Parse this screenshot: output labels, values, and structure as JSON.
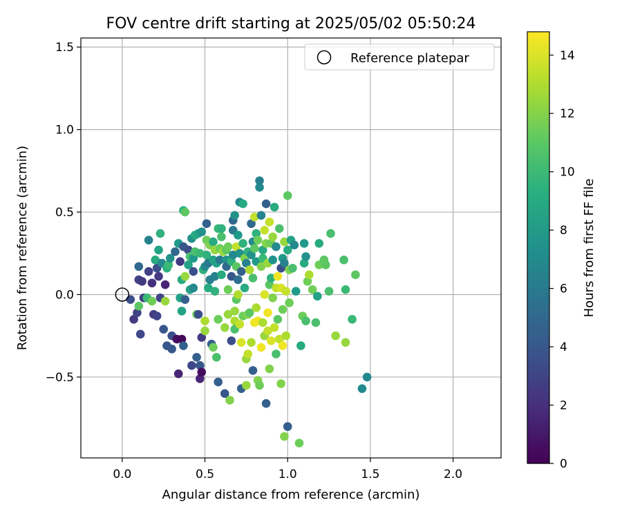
{
  "chart_data": {
    "type": "scatter",
    "title": "FOV centre drift starting at 2025/05/02 05:50:24",
    "xlabel": "Angular distance from reference (arcmin)",
    "ylabel": "Rotation from reference (arcmin)",
    "xlim": [
      -0.25,
      2.29
    ],
    "ylim": [
      -0.99,
      1.555
    ],
    "xticks": [
      0.0,
      0.5,
      1.0,
      1.5,
      2.0
    ],
    "xtick_labels": [
      "0.0",
      "0.5",
      "1.0",
      "1.5",
      "2.0"
    ],
    "yticks": [
      -0.5,
      0.0,
      0.5,
      1.0,
      1.5
    ],
    "ytick_labels": [
      "−0.5",
      "0.0",
      "0.5",
      "1.0",
      "1.5"
    ],
    "grid": true,
    "legend": {
      "placement": "top-right",
      "entries": [
        "Reference platepar"
      ]
    },
    "reference_point": {
      "x": 0.0,
      "y": 0.0,
      "label": "Reference platepar"
    },
    "colorbar": {
      "label": "Hours from first FF file",
      "min": 0,
      "max": 14.8,
      "colormap": "viridis",
      "ticks": [
        0,
        2,
        4,
        6,
        8,
        10,
        12,
        14
      ],
      "tick_labels": [
        "0",
        "2",
        "4",
        "6",
        "8",
        "10",
        "12",
        "14"
      ]
    },
    "points": [
      {
        "x": 0.07,
        "y": -0.15,
        "hours": 2.5
      },
      {
        "x": 0.09,
        "y": -0.11,
        "hours": 3.0
      },
      {
        "x": 0.11,
        "y": -0.24,
        "hours": 3.2
      },
      {
        "x": 0.05,
        "y": -0.03,
        "hours": 3.5
      },
      {
        "x": 0.1,
        "y": 0.09,
        "hours": 3.0
      },
      {
        "x": 0.12,
        "y": 0.08,
        "hours": 2.5
      },
      {
        "x": 0.1,
        "y": 0.17,
        "hours": 5.0
      },
      {
        "x": 0.13,
        "y": -0.02,
        "hours": 2.8
      },
      {
        "x": 0.1,
        "y": -0.07,
        "hours": 11.0
      },
      {
        "x": 0.15,
        "y": -0.02,
        "hours": 10.0
      },
      {
        "x": 0.16,
        "y": 0.14,
        "hours": 2.8
      },
      {
        "x": 0.16,
        "y": 0.33,
        "hours": 6.5
      },
      {
        "x": 0.18,
        "y": 0.07,
        "hours": 2.0
      },
      {
        "x": 0.19,
        "y": -0.12,
        "hours": 2.6
      },
      {
        "x": 0.18,
        "y": -0.04,
        "hours": 11.5
      },
      {
        "x": 0.2,
        "y": 0.21,
        "hours": 9.0
      },
      {
        "x": 0.21,
        "y": 0.16,
        "hours": 3.5
      },
      {
        "x": 0.22,
        "y": 0.11,
        "hours": 2.5
      },
      {
        "x": 0.21,
        "y": -0.13,
        "hours": 3.0
      },
      {
        "x": 0.23,
        "y": 0.37,
        "hours": 9.5
      },
      {
        "x": 0.22,
        "y": 0.27,
        "hours": 8.5
      },
      {
        "x": 0.23,
        "y": -0.02,
        "hours": 3.0
      },
      {
        "x": 0.25,
        "y": -0.21,
        "hours": 4.0
      },
      {
        "x": 0.26,
        "y": 0.06,
        "hours": 1.5
      },
      {
        "x": 0.24,
        "y": 0.19,
        "hours": 7.0
      },
      {
        "x": 0.26,
        "y": -0.04,
        "hours": 12.5
      },
      {
        "x": 0.27,
        "y": 0.16,
        "hours": 9.5
      },
      {
        "x": 0.28,
        "y": 0.18,
        "hours": 10.0
      },
      {
        "x": 0.27,
        "y": -0.31,
        "hours": 4.0
      },
      {
        "x": 0.29,
        "y": 0.22,
        "hours": 7.5
      },
      {
        "x": 0.3,
        "y": -0.25,
        "hours": 3.5
      },
      {
        "x": 0.3,
        "y": -0.33,
        "hours": 4.0
      },
      {
        "x": 0.32,
        "y": 0.26,
        "hours": 5.0
      },
      {
        "x": 0.33,
        "y": -0.27,
        "hours": 0.5
      },
      {
        "x": 0.34,
        "y": -0.48,
        "hours": 1.5
      },
      {
        "x": 0.34,
        "y": 0.31,
        "hours": 8.0
      },
      {
        "x": 0.35,
        "y": 0.2,
        "hours": 2.5
      },
      {
        "x": 0.35,
        "y": -0.02,
        "hours": 8.5
      },
      {
        "x": 0.36,
        "y": 0.09,
        "hours": 9.0
      },
      {
        "x": 0.36,
        "y": -0.27,
        "hours": 0.3
      },
      {
        "x": 0.36,
        "y": -0.1,
        "hours": 8.5
      },
      {
        "x": 0.37,
        "y": 0.51,
        "hours": 9.5
      },
      {
        "x": 0.37,
        "y": 0.29,
        "hours": 4.0
      },
      {
        "x": 0.37,
        "y": -0.31,
        "hours": 4.5
      },
      {
        "x": 0.38,
        "y": 0.5,
        "hours": 11.0
      },
      {
        "x": 0.38,
        "y": 0.11,
        "hours": 12.5
      },
      {
        "x": 0.38,
        "y": -0.03,
        "hours": 4.5
      },
      {
        "x": 0.4,
        "y": 0.18,
        "hours": 8.5
      },
      {
        "x": 0.4,
        "y": 0.27,
        "hours": 3.5
      },
      {
        "x": 0.41,
        "y": 0.03,
        "hours": 8.5
      },
      {
        "x": 0.41,
        "y": 0.23,
        "hours": 10.5
      },
      {
        "x": 0.42,
        "y": 0.34,
        "hours": 7.5
      },
      {
        "x": 0.42,
        "y": -0.43,
        "hours": 3.2
      },
      {
        "x": 0.43,
        "y": 0.14,
        "hours": 3.5
      },
      {
        "x": 0.43,
        "y": 0.22,
        "hours": 8.0
      },
      {
        "x": 0.43,
        "y": 0.04,
        "hours": 7.0
      },
      {
        "x": 0.44,
        "y": 0.36,
        "hours": 9.0
      },
      {
        "x": 0.44,
        "y": 0.26,
        "hours": 10.5
      },
      {
        "x": 0.45,
        "y": -0.12,
        "hours": 11.5
      },
      {
        "x": 0.45,
        "y": -0.38,
        "hours": 4.5
      },
      {
        "x": 0.46,
        "y": 0.37,
        "hours": 8.5
      },
      {
        "x": 0.46,
        "y": -0.12,
        "hours": 3.5
      },
      {
        "x": 0.47,
        "y": -0.43,
        "hours": 4.0
      },
      {
        "x": 0.47,
        "y": -0.51,
        "hours": 1.5
      },
      {
        "x": 0.47,
        "y": 0.25,
        "hours": 10.0
      },
      {
        "x": 0.48,
        "y": -0.26,
        "hours": 2.5
      },
      {
        "x": 0.48,
        "y": -0.47,
        "hours": 0.5
      },
      {
        "x": 0.48,
        "y": 0.38,
        "hours": 7.5
      },
      {
        "x": 0.49,
        "y": 0.15,
        "hours": 9.5
      },
      {
        "x": 0.5,
        "y": -0.16,
        "hours": 13.0
      },
      {
        "x": 0.5,
        "y": -0.22,
        "hours": 12.5
      },
      {
        "x": 0.5,
        "y": 0.17,
        "hours": 7.0
      },
      {
        "x": 0.51,
        "y": 0.43,
        "hours": 4.5
      },
      {
        "x": 0.51,
        "y": 0.33,
        "hours": 11.5
      },
      {
        "x": 0.51,
        "y": 0.24,
        "hours": 9.5
      },
      {
        "x": 0.52,
        "y": 0.19,
        "hours": 6.0
      },
      {
        "x": 0.52,
        "y": 0.04,
        "hours": 9.0
      },
      {
        "x": 0.53,
        "y": 0.09,
        "hours": 6.5
      },
      {
        "x": 0.53,
        "y": 0.3,
        "hours": 12.0
      },
      {
        "x": 0.54,
        "y": -0.3,
        "hours": 4.5
      },
      {
        "x": 0.55,
        "y": -0.32,
        "hours": 11.5
      },
      {
        "x": 0.55,
        "y": 0.21,
        "hours": 8.5
      },
      {
        "x": 0.55,
        "y": 0.32,
        "hours": 9.0
      },
      {
        "x": 0.56,
        "y": 0.11,
        "hours": 6.5
      },
      {
        "x": 0.56,
        "y": 0.27,
        "hours": 12.5
      },
      {
        "x": 0.56,
        "y": 0.02,
        "hours": 9.5
      },
      {
        "x": 0.57,
        "y": -0.38,
        "hours": 10.5
      },
      {
        "x": 0.57,
        "y": 0.19,
        "hours": 8.5
      },
      {
        "x": 0.58,
        "y": 0.4,
        "hours": 10.0
      },
      {
        "x": 0.58,
        "y": -0.53,
        "hours": 4.5
      },
      {
        "x": 0.58,
        "y": -0.15,
        "hours": 11.5
      },
      {
        "x": 0.59,
        "y": 0.28,
        "hours": 11.5
      },
      {
        "x": 0.59,
        "y": 0.21,
        "hours": 6.0
      },
      {
        "x": 0.6,
        "y": 0.12,
        "hours": 9.0
      },
      {
        "x": 0.6,
        "y": 0.35,
        "hours": 10.5
      },
      {
        "x": 0.6,
        "y": 0.4,
        "hours": 9.5
      },
      {
        "x": 0.61,
        "y": 0.26,
        "hours": 12.5
      },
      {
        "x": 0.62,
        "y": -0.2,
        "hours": 12.5
      },
      {
        "x": 0.62,
        "y": -0.6,
        "hours": 4.0
      },
      {
        "x": 0.63,
        "y": 0.21,
        "hours": 7.5
      },
      {
        "x": 0.63,
        "y": 0.27,
        "hours": 11.0
      },
      {
        "x": 0.63,
        "y": 0.17,
        "hours": 5.0
      },
      {
        "x": 0.64,
        "y": 0.29,
        "hours": 11.5
      },
      {
        "x": 0.64,
        "y": 0.03,
        "hours": 11.5
      },
      {
        "x": 0.64,
        "y": -0.12,
        "hours": 12.5
      },
      {
        "x": 0.65,
        "y": -0.64,
        "hours": 12.0
      },
      {
        "x": 0.66,
        "y": -0.28,
        "hours": 3.5
      },
      {
        "x": 0.66,
        "y": 0.2,
        "hours": 9.5
      },
      {
        "x": 0.66,
        "y": 0.11,
        "hours": 4.0
      },
      {
        "x": 0.67,
        "y": 0.45,
        "hours": 5.0
      },
      {
        "x": 0.67,
        "y": 0.24,
        "hours": 7.0
      },
      {
        "x": 0.67,
        "y": 0.39,
        "hours": 6.0
      },
      {
        "x": 0.68,
        "y": -0.16,
        "hours": 13.0
      },
      {
        "x": 0.68,
        "y": -0.1,
        "hours": 12.5
      },
      {
        "x": 0.68,
        "y": 0.48,
        "hours": 7.5
      },
      {
        "x": 0.68,
        "y": -0.21,
        "hours": 10.5
      },
      {
        "x": 0.69,
        "y": 0.29,
        "hours": 13.5
      },
      {
        "x": 0.69,
        "y": 0.17,
        "hours": 11.0
      },
      {
        "x": 0.69,
        "y": -0.03,
        "hours": 11.0
      },
      {
        "x": 0.7,
        "y": 0.09,
        "hours": 5.5
      },
      {
        "x": 0.7,
        "y": 0.36,
        "hours": 8.0
      },
      {
        "x": 0.7,
        "y": 0.0,
        "hours": 13.0
      },
      {
        "x": 0.71,
        "y": -0.18,
        "hours": 13.5
      },
      {
        "x": 0.71,
        "y": 0.25,
        "hours": 7.5
      },
      {
        "x": 0.71,
        "y": 0.56,
        "hours": 7.0
      },
      {
        "x": 0.72,
        "y": 0.14,
        "hours": 4.5
      },
      {
        "x": 0.72,
        "y": -0.57,
        "hours": 4.5
      },
      {
        "x": 0.72,
        "y": -0.29,
        "hours": 14.0
      },
      {
        "x": 0.73,
        "y": 0.55,
        "hours": 9.0
      },
      {
        "x": 0.73,
        "y": 0.31,
        "hours": 9.5
      },
      {
        "x": 0.73,
        "y": -0.13,
        "hours": 11.5
      },
      {
        "x": 0.74,
        "y": 0.22,
        "hours": 12.0
      },
      {
        "x": 0.74,
        "y": 0.04,
        "hours": 9.0
      },
      {
        "x": 0.75,
        "y": -0.39,
        "hours": 12.5
      },
      {
        "x": 0.75,
        "y": -0.55,
        "hours": 12.5
      },
      {
        "x": 0.75,
        "y": 0.19,
        "hours": 6.5
      },
      {
        "x": 0.76,
        "y": -0.36,
        "hours": 13.5
      },
      {
        "x": 0.76,
        "y": 0.26,
        "hours": 9.5
      },
      {
        "x": 0.76,
        "y": -0.12,
        "hours": 12.0
      },
      {
        "x": 0.77,
        "y": 0.15,
        "hours": 13.0
      },
      {
        "x": 0.77,
        "y": -0.11,
        "hours": 11.0
      },
      {
        "x": 0.78,
        "y": 0.43,
        "hours": 5.0
      },
      {
        "x": 0.78,
        "y": -0.29,
        "hours": 13.0
      },
      {
        "x": 0.78,
        "y": 0.24,
        "hours": 7.5
      },
      {
        "x": 0.79,
        "y": 0.32,
        "hours": 7.0
      },
      {
        "x": 0.79,
        "y": 0.1,
        "hours": 10.5
      },
      {
        "x": 0.79,
        "y": -0.46,
        "hours": 4.5
      },
      {
        "x": 0.8,
        "y": 0.47,
        "hours": 13.5
      },
      {
        "x": 0.8,
        "y": 0.28,
        "hours": 11.0
      },
      {
        "x": 0.8,
        "y": -0.17,
        "hours": 14.5
      },
      {
        "x": 0.81,
        "y": 0.37,
        "hours": 9.5
      },
      {
        "x": 0.81,
        "y": -0.08,
        "hours": 13.0
      },
      {
        "x": 0.81,
        "y": 0.2,
        "hours": 8.0
      },
      {
        "x": 0.82,
        "y": 0.33,
        "hours": 11.5
      },
      {
        "x": 0.82,
        "y": -0.52,
        "hours": 12.0
      },
      {
        "x": 0.82,
        "y": -0.16,
        "hours": 14.5
      },
      {
        "x": 0.83,
        "y": 0.69,
        "hours": 6.5
      },
      {
        "x": 0.83,
        "y": 0.65,
        "hours": 7.0
      },
      {
        "x": 0.83,
        "y": -0.55,
        "hours": 11.5
      },
      {
        "x": 0.84,
        "y": 0.48,
        "hours": 6.5
      },
      {
        "x": 0.84,
        "y": -0.32,
        "hours": 14.5
      },
      {
        "x": 0.84,
        "y": 0.17,
        "hours": 12.0
      },
      {
        "x": 0.85,
        "y": 0.27,
        "hours": 9.0
      },
      {
        "x": 0.85,
        "y": 0.22,
        "hours": 10.0
      },
      {
        "x": 0.85,
        "y": -0.17,
        "hours": 13.0
      },
      {
        "x": 0.86,
        "y": 0.39,
        "hours": 13.5
      },
      {
        "x": 0.86,
        "y": 0.0,
        "hours": 14.0
      },
      {
        "x": 0.86,
        "y": -0.25,
        "hours": 12.5
      },
      {
        "x": 0.87,
        "y": 0.31,
        "hours": 12.0
      },
      {
        "x": 0.87,
        "y": 0.55,
        "hours": 4.5
      },
      {
        "x": 0.87,
        "y": -0.66,
        "hours": 4.5
      },
      {
        "x": 0.88,
        "y": 0.19,
        "hours": 12.5
      },
      {
        "x": 0.88,
        "y": -0.22,
        "hours": 13.5
      },
      {
        "x": 0.88,
        "y": -0.11,
        "hours": 14.5
      },
      {
        "x": 0.89,
        "y": 0.06,
        "hours": 11.0
      },
      {
        "x": 0.89,
        "y": 0.44,
        "hours": 13.5
      },
      {
        "x": 0.89,
        "y": -0.45,
        "hours": 12.0
      },
      {
        "x": 0.9,
        "y": 0.31,
        "hours": 11.5
      },
      {
        "x": 0.9,
        "y": -0.28,
        "hours": 14.0
      },
      {
        "x": 0.9,
        "y": 0.1,
        "hours": 9.5
      },
      {
        "x": 0.91,
        "y": -0.02,
        "hours": 12.0
      },
      {
        "x": 0.91,
        "y": 0.35,
        "hours": 12.5
      },
      {
        "x": 0.91,
        "y": 0.21,
        "hours": 7.5
      },
      {
        "x": 0.92,
        "y": -0.2,
        "hours": 13.5
      },
      {
        "x": 0.92,
        "y": 0.53,
        "hours": 9.0
      },
      {
        "x": 0.93,
        "y": 0.04,
        "hours": 13.5
      },
      {
        "x": 0.93,
        "y": -0.36,
        "hours": 10.5
      },
      {
        "x": 0.93,
        "y": 0.29,
        "hours": 7.0
      },
      {
        "x": 0.94,
        "y": 0.11,
        "hours": 14.5
      },
      {
        "x": 0.94,
        "y": -0.15,
        "hours": 11.0
      },
      {
        "x": 0.95,
        "y": 0.4,
        "hours": 10.5
      },
      {
        "x": 0.95,
        "y": -0.27,
        "hours": 13.5
      },
      {
        "x": 0.96,
        "y": 0.16,
        "hours": 3.5
      },
      {
        "x": 0.96,
        "y": -0.54,
        "hours": 12.0
      },
      {
        "x": 0.96,
        "y": 0.04,
        "hours": 14.0
      },
      {
        "x": 0.97,
        "y": -0.09,
        "hours": 11.5
      },
      {
        "x": 0.97,
        "y": 0.22,
        "hours": 8.0
      },
      {
        "x": 0.97,
        "y": -0.31,
        "hours": 14.5
      },
      {
        "x": 0.98,
        "y": -0.86,
        "hours": 12.0
      },
      {
        "x": 0.98,
        "y": 0.32,
        "hours": 12.5
      },
      {
        "x": 0.98,
        "y": 0.19,
        "hours": 6.5
      },
      {
        "x": 0.99,
        "y": -0.25,
        "hours": 13.0
      },
      {
        "x": 0.99,
        "y": 0.02,
        "hours": 13.5
      },
      {
        "x": 1.0,
        "y": 0.6,
        "hours": 11.0
      },
      {
        "x": 1.0,
        "y": -0.8,
        "hours": 4.5
      },
      {
        "x": 1.0,
        "y": 0.27,
        "hours": 9.0
      },
      {
        "x": 1.01,
        "y": -0.05,
        "hours": 11.5
      },
      {
        "x": 1.01,
        "y": 0.15,
        "hours": 12.0
      },
      {
        "x": 1.02,
        "y": 0.33,
        "hours": 8.5
      },
      {
        "x": 1.03,
        "y": 0.16,
        "hours": 10.5
      },
      {
        "x": 1.04,
        "y": 0.3,
        "hours": 7.0
      },
      {
        "x": 1.05,
        "y": 0.02,
        "hours": 8.0
      },
      {
        "x": 1.07,
        "y": -0.9,
        "hours": 11.5
      },
      {
        "x": 1.08,
        "y": -0.31,
        "hours": 9.0
      },
      {
        "x": 1.09,
        "y": -0.13,
        "hours": 11.5
      },
      {
        "x": 1.1,
        "y": 0.31,
        "hours": 8.0
      },
      {
        "x": 1.1,
        "y": 0.19,
        "hours": 9.0
      },
      {
        "x": 1.11,
        "y": 0.23,
        "hours": 7.5
      },
      {
        "x": 1.11,
        "y": -0.16,
        "hours": 10.5
      },
      {
        "x": 1.12,
        "y": 0.08,
        "hours": 11.5
      },
      {
        "x": 1.13,
        "y": 0.12,
        "hours": 13.0
      },
      {
        "x": 1.15,
        "y": 0.03,
        "hours": 11.5
      },
      {
        "x": 1.17,
        "y": -0.17,
        "hours": 10.5
      },
      {
        "x": 1.18,
        "y": -0.01,
        "hours": 8.5
      },
      {
        "x": 1.19,
        "y": 0.31,
        "hours": 9.0
      },
      {
        "x": 1.19,
        "y": 0.18,
        "hours": 11.5
      },
      {
        "x": 1.22,
        "y": 0.21,
        "hours": 11.0
      },
      {
        "x": 1.23,
        "y": 0.18,
        "hours": 11.0
      },
      {
        "x": 1.25,
        "y": 0.02,
        "hours": 10.5
      },
      {
        "x": 1.26,
        "y": 0.37,
        "hours": 10.5
      },
      {
        "x": 1.29,
        "y": -0.25,
        "hours": 12.5
      },
      {
        "x": 1.34,
        "y": 0.21,
        "hours": 10.5
      },
      {
        "x": 1.35,
        "y": 0.03,
        "hours": 10.0
      },
      {
        "x": 1.35,
        "y": -0.29,
        "hours": 12.5
      },
      {
        "x": 1.39,
        "y": -0.15,
        "hours": 10.0
      },
      {
        "x": 1.41,
        "y": 0.12,
        "hours": 11.0
      },
      {
        "x": 1.45,
        "y": -0.57,
        "hours": 7.0
      },
      {
        "x": 1.48,
        "y": -0.5,
        "hours": 7.0
      }
    ]
  }
}
